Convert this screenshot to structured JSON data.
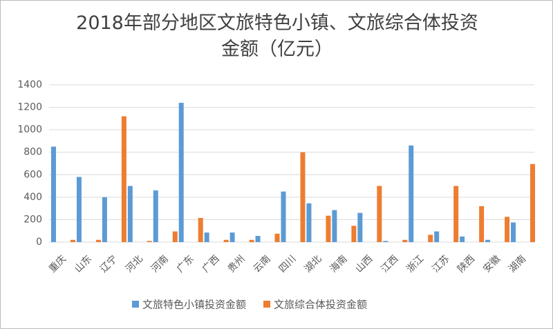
{
  "chart_data": {
    "type": "bar",
    "title": "2018年部分地区文旅特色小镇、文旅综合体投资金额（亿元）",
    "categories": [
      "重庆",
      "山东",
      "辽宁",
      "河北",
      "河南",
      "广东",
      "广西",
      "贵州",
      "云南",
      "四川",
      "湖北",
      "海南",
      "山西",
      "江西",
      "浙江",
      "江苏",
      "陕西",
      "安徽",
      "湖南"
    ],
    "series": [
      {
        "name": "文旅特色小镇投资金额",
        "color": "#5b9bd5",
        "values": [
          850,
          580,
          400,
          500,
          460,
          1240,
          85,
          85,
          55,
          450,
          345,
          285,
          260,
          10,
          860,
          95,
          50,
          20,
          175
        ]
      },
      {
        "name": "文旅综合体投资金额",
        "color": "#ed7d31",
        "values": [
          20,
          20,
          1120,
          10,
          95,
          215,
          20,
          20,
          75,
          800,
          235,
          145,
          500,
          20,
          65,
          500,
          320,
          225,
          695
        ]
      }
    ],
    "ylim": [
      0,
      1400
    ],
    "yticks": [
      0,
      200,
      400,
      600,
      800,
      1000,
      1200,
      1400
    ],
    "grid": true,
    "legend": "bottom"
  }
}
